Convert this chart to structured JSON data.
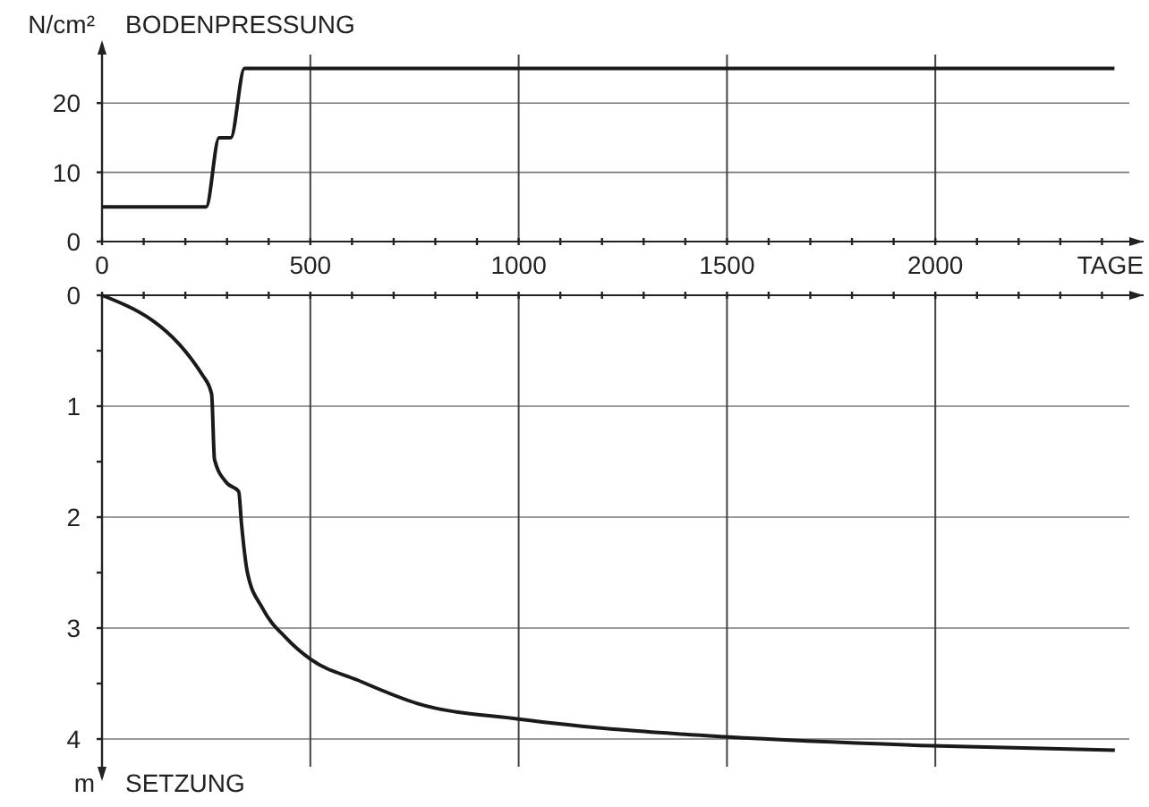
{
  "chart_data": [
    {
      "type": "line",
      "title": "BODENPRESSUNG",
      "ylabel": "N/cm²",
      "xlabel": "TAGE",
      "x": [
        0,
        250,
        281,
        309,
        342,
        2430
      ],
      "series": [
        {
          "color": "#1a1a1a",
          "values": [
            5,
            5,
            15,
            15,
            25,
            25
          ]
        }
      ],
      "xlim": [
        0,
        2500
      ],
      "xticks": [
        0,
        {
          "value": 100,
          "label": null
        },
        {
          "value": 200,
          "label": null
        },
        {
          "value": 300,
          "label": null
        },
        {
          "value": 400,
          "label": null
        },
        500,
        {
          "value": 600,
          "label": null
        },
        {
          "value": 700,
          "label": null
        },
        {
          "value": 800,
          "label": null
        },
        {
          "value": 900,
          "label": null
        },
        1000,
        {
          "value": 1100,
          "label": null
        },
        {
          "value": 1200,
          "label": null
        },
        {
          "value": 1300,
          "label": null
        },
        {
          "value": 1400,
          "label": null
        },
        1500,
        {
          "value": 1600,
          "label": null
        },
        {
          "value": 1700,
          "label": null
        },
        {
          "value": 1800,
          "label": null
        },
        {
          "value": 1900,
          "label": null
        },
        2000,
        {
          "value": 2100,
          "label": null
        },
        {
          "value": 2200,
          "label": null
        },
        {
          "value": 2300,
          "label": null
        },
        {
          "value": 2400,
          "label": null
        }
      ],
      "ylim": [
        0,
        27
      ],
      "yticks": [
        0,
        10,
        20
      ],
      "grid": true,
      "marker": "none",
      "line_style": "solid"
    },
    {
      "type": "line",
      "title": "SETZUNG",
      "ylabel": "m",
      "x": [
        0,
        243,
        263,
        270,
        299,
        328,
        335,
        349,
        385,
        442,
        500,
        614,
        757,
        1000,
        1258,
        1495,
        1989,
        2431
      ],
      "series": [
        {
          "color": "#1a1a1a",
          "values": [
            0,
            0.73,
            0.89,
            1.48,
            1.69,
            1.77,
            2.07,
            2.5,
            2.82,
            3.09,
            3.28,
            3.47,
            3.68,
            3.82,
            3.92,
            3.98,
            4.06,
            4.1
          ]
        }
      ],
      "xlim": [
        0,
        2500
      ],
      "xticks": [
        {
          "value": 0,
          "label": null
        },
        {
          "value": 100,
          "label": null
        },
        {
          "value": 200,
          "label": null
        },
        {
          "value": 300,
          "label": null
        },
        {
          "value": 400,
          "label": null
        },
        {
          "value": 500,
          "label": null
        },
        {
          "value": 600,
          "label": null
        },
        {
          "value": 700,
          "label": null
        },
        {
          "value": 800,
          "label": null
        },
        {
          "value": 900,
          "label": null
        },
        {
          "value": 1000,
          "label": null
        },
        {
          "value": 1100,
          "label": null
        },
        {
          "value": 1200,
          "label": null
        },
        {
          "value": 1300,
          "label": null
        },
        {
          "value": 1400,
          "label": null
        },
        {
          "value": 1500,
          "label": null
        },
        {
          "value": 1600,
          "label": null
        },
        {
          "value": 1700,
          "label": null
        },
        {
          "value": 1800,
          "label": null
        },
        {
          "value": 1900,
          "label": null
        },
        {
          "value": 2000,
          "label": null
        },
        {
          "value": 2100,
          "label": null
        },
        {
          "value": 2200,
          "label": null
        },
        {
          "value": 2300,
          "label": null
        },
        {
          "value": 2400,
          "label": null
        }
      ],
      "ylim": [
        4.25,
        0
      ],
      "yticks": [
        0,
        {
          "value": 0.5,
          "label": null
        },
        1,
        {
          "value": 1.5,
          "label": null
        },
        2,
        {
          "value": 2.5,
          "label": null
        },
        3,
        {
          "value": 3.5,
          "label": null
        },
        4
      ],
      "tick_labels": "y",
      "grid": true,
      "marker": "none",
      "line_style": "solid"
    }
  ]
}
